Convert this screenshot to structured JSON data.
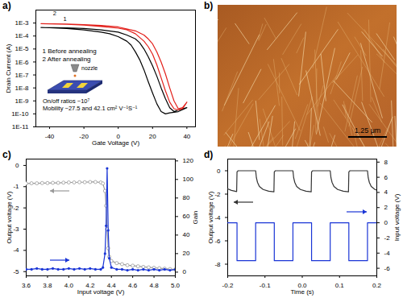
{
  "chart_data": [
    {
      "type": "line",
      "label": "a)",
      "xlabel": "Gate Voltage (V)",
      "ylabel": "Drain Current (A)",
      "log": "y",
      "legend": "left",
      "xlim": [
        -48,
        45
      ],
      "xticks": [
        -40,
        -20,
        0,
        20,
        40
      ],
      "ylim": [
        1e-11,
        0.01
      ],
      "yticks": [
        {
          "value": 0.001,
          "label": "1E-3"
        },
        {
          "value": 0.0001,
          "label": "1E-4"
        },
        {
          "value": 1e-05,
          "label": "1E-5"
        },
        {
          "value": 1e-06,
          "label": "1E-6"
        },
        {
          "value": 1e-07,
          "label": "1E-7"
        },
        {
          "value": 1e-08,
          "label": "1E-8"
        },
        {
          "value": 1e-09,
          "label": "1E-9"
        },
        {
          "value": 1e-10,
          "label": "1E-10"
        },
        {
          "value": 1e-11,
          "label": "1E-11"
        }
      ],
      "series": [
        {
          "name": "1 Before annealing",
          "color": "#000000",
          "x": [
            -45,
            -40,
            -30,
            -20,
            -10,
            -5,
            0,
            5,
            7.5,
            10,
            12.5,
            15,
            17.5,
            20,
            22.5,
            25,
            27.5,
            30,
            35,
            40,
            35,
            32.5,
            30,
            27.5,
            25,
            22.5,
            20,
            17.5,
            15,
            12.5,
            10,
            5,
            0,
            -10,
            -20,
            -30,
            -45
          ],
          "values": [
            0.00045,
            0.00043,
            0.00038,
            0.0003,
            0.0002,
            0.00015,
            9e-05,
            4e-05,
            2e-05,
            6e-06,
            1.5e-06,
            2.5e-07,
            3e-08,
            4e-09,
            6e-10,
            1.5e-10,
            1e-10,
            1.2e-10,
            1.5e-10,
            3e-10,
            2e-10,
            1.5e-10,
            3e-10,
            1.5e-09,
            1e-08,
            8e-08,
            5e-07,
            2.5e-06,
            1e-05,
            3e-05,
            6e-05,
            0.00012,
            0.0002,
            0.0003,
            0.00038,
            0.00043,
            0.00045
          ]
        },
        {
          "name": "2 After annealing",
          "color": "#e3201b",
          "x": [
            -45,
            -30,
            -20,
            -10,
            0,
            5,
            10,
            15,
            17.5,
            20,
            22.5,
            25,
            27.5,
            30,
            32.5,
            35,
            37.5,
            40,
            37.5,
            35,
            32.5,
            30,
            27.5,
            25,
            22.5,
            20,
            17.5,
            15,
            10,
            0,
            -10,
            -20,
            -30,
            -45
          ],
          "values": [
            0.0009,
            0.0008,
            0.0007,
            0.00055,
            0.0004,
            0.0003,
            0.00015,
            4e-05,
            1.5e-05,
            4e-06,
            6e-07,
            6e-08,
            6e-09,
            8e-10,
            2.5e-10,
            2e-10,
            2.5e-10,
            8e-10,
            3e-10,
            2.5e-10,
            1e-09,
            1e-08,
            1.2e-07,
            1e-06,
            6e-06,
            2.5e-05,
            6e-05,
            0.00012,
            0.00025,
            0.0005,
            0.00065,
            0.00075,
            0.00085,
            0.0009
          ]
        }
      ],
      "annotations": [
        {
          "text": "2",
          "x": -38,
          "y": 0.0055
        },
        {
          "text": "1",
          "x": -32,
          "y": 0.002
        },
        {
          "text": "On/off ratios ~10⁷",
          "x": -44,
          "y": 1e-09
        },
        {
          "text": "Mobility ~27.5 and 42.1 cm² V⁻¹S⁻¹",
          "x": -44,
          "y": 2.5e-10
        }
      ],
      "inset": {
        "label": "nozzle"
      }
    },
    {
      "type": "image",
      "label": "b)",
      "scale_bar": "1.25 μm"
    },
    {
      "type": "line",
      "label": "c)",
      "xlabel": "Input voltage (V)",
      "ylabel": "Output voltage (V)",
      "y2label": "Gain",
      "xlim": [
        3.6,
        5.0
      ],
      "xticks": [
        3.6,
        3.8,
        {
          "value": 4,
          "label": "4.0"
        },
        4.2,
        4.4,
        4.6,
        4.8,
        {
          "value": 5,
          "label": "5.0"
        }
      ],
      "ylim": [
        -5.2,
        0.3
      ],
      "yticks": [
        0,
        -1,
        -2,
        -3,
        -4,
        -5
      ],
      "y2lim": [
        -4,
        122
      ],
      "y2ticks": [
        0,
        20,
        40,
        60,
        80,
        100,
        120
      ],
      "x": [
        3.6,
        3.65,
        3.7,
        3.75,
        3.8,
        3.85,
        3.9,
        3.95,
        4.0,
        4.05,
        4.1,
        4.15,
        4.2,
        4.25,
        4.3,
        4.32,
        4.34,
        4.35,
        4.36,
        4.37,
        4.38,
        4.4,
        4.45,
        4.5,
        4.55,
        4.6,
        4.65,
        4.7,
        4.75,
        4.8,
        4.85,
        4.9,
        4.95,
        5.0
      ],
      "series": [
        {
          "color": "#9a9a9a",
          "marker": "circle",
          "values": [
            -0.85,
            -0.84,
            -0.84,
            -0.83,
            -0.83,
            -0.82,
            -0.82,
            -0.81,
            -0.8,
            -0.8,
            -0.79,
            -0.79,
            -0.78,
            -0.78,
            -0.8,
            -0.85,
            -1.2,
            -1.9,
            -3.0,
            -3.9,
            -4.3,
            -4.5,
            -4.6,
            -4.65,
            -4.7,
            -4.72,
            -4.75,
            -4.78,
            -4.8,
            -4.82,
            -4.84,
            -4.86,
            -4.88,
            -4.9
          ]
        },
        {
          "color": "#1a35d6",
          "marker": "dot",
          "axis": "y2",
          "values": [
            3,
            3,
            4,
            3,
            3,
            4,
            3,
            3,
            4,
            3,
            4,
            3,
            4,
            3,
            3,
            5,
            20,
            50,
            112,
            45,
            15,
            5,
            3,
            3,
            2,
            3,
            2,
            3,
            2,
            3,
            2,
            3,
            2,
            3
          ]
        }
      ]
    },
    {
      "type": "line",
      "label": "d)",
      "xlabel": "Time (s)",
      "ylabel": "Output voltage (V)",
      "y2label": "Input voltage (V)",
      "xlim": [
        -0.2,
        0.2
      ],
      "xticks": [
        -0.2,
        -0.1,
        {
          "value": 0,
          "label": "0.0"
        },
        0.1,
        0.2
      ],
      "ylim": [
        -9,
        1
      ],
      "yticks": [
        0,
        -2,
        -4,
        -6,
        -8
      ],
      "y2lim": [
        -7,
        8.4
      ],
      "y2ticks": [
        8,
        6,
        4,
        2,
        0,
        -2,
        -4,
        -6
      ],
      "series": [
        {
          "color": "#333333",
          "x": [
            -0.2,
            -0.19,
            -0.176,
            -0.175,
            -0.172,
            -0.125,
            -0.123,
            -0.12,
            -0.115,
            -0.105,
            -0.09,
            -0.076,
            -0.075,
            -0.072,
            -0.025,
            -0.023,
            -0.02,
            -0.015,
            -0.005,
            0.01,
            0.024,
            0.025,
            0.028,
            0.075,
            0.077,
            0.08,
            0.085,
            0.095,
            0.11,
            0.124,
            0.125,
            0.128,
            0.175,
            0.177,
            0.18,
            0.185,
            0.195,
            0.2
          ],
          "values": [
            -1.55,
            -1.68,
            -1.78,
            -0.1,
            0,
            0,
            -0.6,
            -1.0,
            -1.35,
            -1.6,
            -1.75,
            -1.8,
            -0.1,
            0,
            0,
            -0.6,
            -1.0,
            -1.35,
            -1.6,
            -1.75,
            -1.8,
            -0.1,
            0,
            0,
            -0.6,
            -1.0,
            -1.35,
            -1.6,
            -1.75,
            -1.8,
            -0.1,
            0,
            0,
            -0.6,
            -1.0,
            -1.35,
            -1.6,
            -1.65
          ]
        },
        {
          "color": "#1a35d6",
          "axis": "y2",
          "x": [
            -0.2,
            -0.175,
            -0.175,
            -0.125,
            -0.125,
            -0.075,
            -0.075,
            -0.025,
            -0.025,
            0.025,
            0.025,
            0.075,
            0.075,
            0.125,
            0.125,
            0.175,
            0.175,
            0.2
          ],
          "values": [
            0,
            0,
            -5,
            -5,
            0,
            0,
            -5,
            -5,
            0,
            0,
            -5,
            -5,
            0,
            0,
            -5,
            -5,
            0,
            0
          ]
        }
      ]
    }
  ]
}
